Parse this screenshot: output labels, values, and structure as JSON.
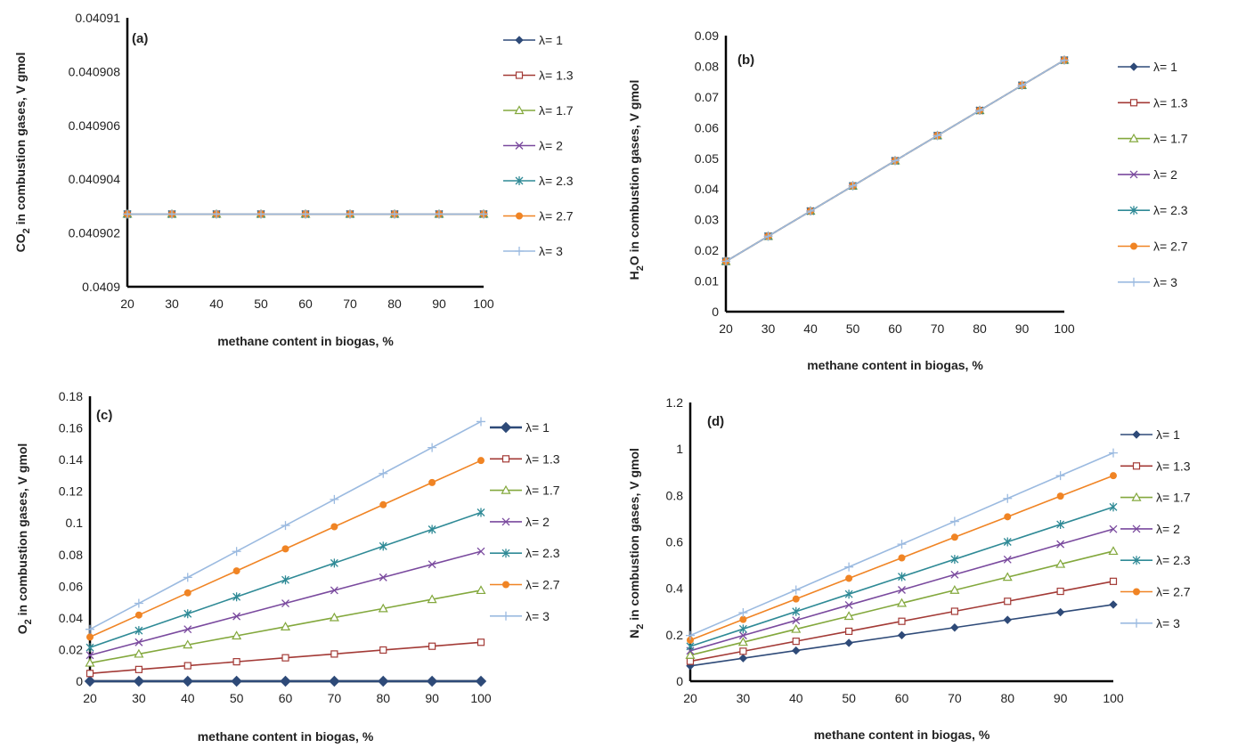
{
  "legend_labels": [
    "λ= 1",
    "λ= 1.3",
    "λ= 1.7",
    "λ= 2",
    "λ= 2.3",
    "λ= 2.7",
    "λ= 3"
  ],
  "colors": [
    "#2e4a78",
    "#a33a36",
    "#83a83d",
    "#7a4a9e",
    "#2f8a96",
    "#f08424",
    "#9bbae0"
  ],
  "markers": [
    "diamond",
    "square",
    "triangle",
    "x",
    "star",
    "circle",
    "plus"
  ],
  "chart_data": [
    {
      "type": "line",
      "panel": "(a)",
      "xlabel": "methane content in biogas, %",
      "ylabel_pre": "CO",
      "ylabel_sub": "2",
      "ylabel_post": " in combustion gases, V gmol",
      "x": [
        20,
        30,
        40,
        50,
        60,
        70,
        80,
        90,
        100
      ],
      "ylim": [
        0.0409,
        0.04091
      ],
      "yticks": [
        0.0409,
        0.040902,
        0.040904,
        0.040906,
        0.040908,
        0.04091
      ],
      "yticklabels": [
        "0.0409",
        "0.040902",
        "0.040904",
        "0.040906",
        "0.040908",
        "0.04091"
      ],
      "series": [
        {
          "name": "λ= 1",
          "values": [
            0.0409027,
            0.0409027,
            0.0409027,
            0.0409027,
            0.0409027,
            0.0409027,
            0.0409027,
            0.0409027,
            0.0409027
          ]
        },
        {
          "name": "λ= 1.3",
          "values": [
            0.0409027,
            0.0409027,
            0.0409027,
            0.0409027,
            0.0409027,
            0.0409027,
            0.0409027,
            0.0409027,
            0.0409027
          ]
        },
        {
          "name": "λ= 1.7",
          "values": [
            0.0409027,
            0.0409027,
            0.0409027,
            0.0409027,
            0.0409027,
            0.0409027,
            0.0409027,
            0.0409027,
            0.0409027
          ]
        },
        {
          "name": "λ= 2",
          "values": [
            0.0409027,
            0.0409027,
            0.0409027,
            0.0409027,
            0.0409027,
            0.0409027,
            0.0409027,
            0.0409027,
            0.0409027
          ]
        },
        {
          "name": "λ= 2.3",
          "values": [
            0.0409027,
            0.0409027,
            0.0409027,
            0.0409027,
            0.0409027,
            0.0409027,
            0.0409027,
            0.0409027,
            0.0409027
          ]
        },
        {
          "name": "λ= 2.7",
          "values": [
            0.0409027,
            0.0409027,
            0.0409027,
            0.0409027,
            0.0409027,
            0.0409027,
            0.0409027,
            0.0409027,
            0.0409027
          ]
        },
        {
          "name": "λ= 3",
          "values": [
            0.0409027,
            0.0409027,
            0.0409027,
            0.0409027,
            0.0409027,
            0.0409027,
            0.0409027,
            0.0409027,
            0.0409027
          ]
        }
      ]
    },
    {
      "type": "line",
      "panel": "(b)",
      "xlabel": "methane content in biogas, %",
      "ylabel_pre": "H",
      "ylabel_sub": "2",
      "ylabel_post": "O in combustion gases, V gmol",
      "x": [
        20,
        30,
        40,
        50,
        60,
        70,
        80,
        90,
        100
      ],
      "ylim": [
        0,
        0.09
      ],
      "yticks": [
        0,
        0.01,
        0.02,
        0.03,
        0.04,
        0.05,
        0.06,
        0.07,
        0.08,
        0.09
      ],
      "yticklabels": [
        "0",
        "0.01",
        "0.02",
        "0.03",
        "0.04",
        "0.05",
        "0.06",
        "0.07",
        "0.08",
        "0.09"
      ],
      "series": [
        {
          "name": "λ= 1",
          "values": [
            0.0164,
            0.0246,
            0.0328,
            0.041,
            0.0492,
            0.0574,
            0.0656,
            0.0738,
            0.082
          ]
        },
        {
          "name": "λ= 1.3",
          "values": [
            0.0164,
            0.0246,
            0.0328,
            0.041,
            0.0492,
            0.0574,
            0.0656,
            0.0738,
            0.082
          ]
        },
        {
          "name": "λ= 1.7",
          "values": [
            0.0164,
            0.0246,
            0.0328,
            0.041,
            0.0492,
            0.0574,
            0.0656,
            0.0738,
            0.082
          ]
        },
        {
          "name": "λ= 2",
          "values": [
            0.0164,
            0.0246,
            0.0328,
            0.041,
            0.0492,
            0.0574,
            0.0656,
            0.0738,
            0.082
          ]
        },
        {
          "name": "λ= 2.3",
          "values": [
            0.0164,
            0.0246,
            0.0328,
            0.041,
            0.0492,
            0.0574,
            0.0656,
            0.0738,
            0.082
          ]
        },
        {
          "name": "λ= 2.7",
          "values": [
            0.0164,
            0.0246,
            0.0328,
            0.041,
            0.0492,
            0.0574,
            0.0656,
            0.0738,
            0.082
          ]
        },
        {
          "name": "λ= 3",
          "values": [
            0.0164,
            0.0246,
            0.0328,
            0.041,
            0.0492,
            0.0574,
            0.0656,
            0.0738,
            0.082
          ]
        }
      ]
    },
    {
      "type": "line",
      "panel": "(c)",
      "xlabel": "methane content in biogas, %",
      "ylabel_pre": "O",
      "ylabel_sub": "2",
      "ylabel_post": " in combustion gases, V gmol",
      "x": [
        20,
        30,
        40,
        50,
        60,
        70,
        80,
        90,
        100
      ],
      "ylim": [
        0,
        0.18
      ],
      "yticks": [
        0,
        0.02,
        0.04,
        0.06,
        0.08,
        0.1,
        0.12,
        0.14,
        0.16,
        0.18
      ],
      "yticklabels": [
        "0",
        "0.02",
        "0.04",
        "0.06",
        "0.08",
        "0.1",
        "0.12",
        "0.14",
        "0.16",
        "0.18"
      ],
      "series": [
        {
          "name": "λ= 1",
          "values": [
            0,
            0,
            0,
            0,
            0,
            0,
            0,
            0,
            0
          ]
        },
        {
          "name": "λ= 1.3",
          "values": [
            0.0049,
            0.0074,
            0.0098,
            0.0123,
            0.0148,
            0.0172,
            0.0197,
            0.0221,
            0.0246
          ]
        },
        {
          "name": "λ= 1.7",
          "values": [
            0.0115,
            0.0172,
            0.023,
            0.0287,
            0.0344,
            0.0402,
            0.0459,
            0.0517,
            0.0574
          ]
        },
        {
          "name": "λ= 2",
          "values": [
            0.0164,
            0.0246,
            0.0328,
            0.041,
            0.0492,
            0.0574,
            0.0656,
            0.0738,
            0.082
          ]
        },
        {
          "name": "λ= 2.3",
          "values": [
            0.0213,
            0.032,
            0.0426,
            0.0533,
            0.064,
            0.0746,
            0.0853,
            0.0959,
            0.1066
          ]
        },
        {
          "name": "λ= 2.7",
          "values": [
            0.0279,
            0.0418,
            0.0558,
            0.0697,
            0.0836,
            0.0976,
            0.1115,
            0.1255,
            0.1394
          ]
        },
        {
          "name": "λ= 3",
          "values": [
            0.0328,
            0.0492,
            0.0656,
            0.082,
            0.0984,
            0.1148,
            0.1312,
            0.1476,
            0.164
          ]
        }
      ]
    },
    {
      "type": "line",
      "panel": "(d)",
      "xlabel": "methane content in biogas, %",
      "ylabel_pre": "N",
      "ylabel_sub": "2",
      "ylabel_post": " in combustion gases, V gmol",
      "x": [
        20,
        30,
        40,
        50,
        60,
        70,
        80,
        90,
        100
      ],
      "ylim": [
        0,
        1.2
      ],
      "yticks": [
        0,
        0.2,
        0.4,
        0.6,
        0.8,
        1,
        1.2
      ],
      "yticklabels": [
        "0",
        "0.2",
        "0.4",
        "0.6",
        "0.8",
        "1",
        "1.2"
      ],
      "series": [
        {
          "name": "λ= 1",
          "values": [
            0.066,
            0.099,
            0.132,
            0.165,
            0.198,
            0.231,
            0.264,
            0.297,
            0.33
          ]
        },
        {
          "name": "λ= 1.3",
          "values": [
            0.086,
            0.129,
            0.172,
            0.215,
            0.258,
            0.301,
            0.344,
            0.387,
            0.43
          ]
        },
        {
          "name": "λ= 1.7",
          "values": [
            0.112,
            0.168,
            0.224,
            0.28,
            0.336,
            0.392,
            0.448,
            0.504,
            0.56
          ]
        },
        {
          "name": "λ= 2",
          "values": [
            0.131,
            0.197,
            0.262,
            0.328,
            0.393,
            0.459,
            0.524,
            0.59,
            0.655
          ]
        },
        {
          "name": "λ= 2.3",
          "values": [
            0.15,
            0.225,
            0.3,
            0.375,
            0.45,
            0.525,
            0.6,
            0.675,
            0.75
          ]
        },
        {
          "name": "λ= 2.7",
          "values": [
            0.177,
            0.266,
            0.354,
            0.443,
            0.531,
            0.62,
            0.708,
            0.797,
            0.885
          ]
        },
        {
          "name": "λ= 3",
          "values": [
            0.197,
            0.295,
            0.393,
            0.492,
            0.59,
            0.688,
            0.787,
            0.885,
            0.983
          ]
        }
      ]
    }
  ]
}
